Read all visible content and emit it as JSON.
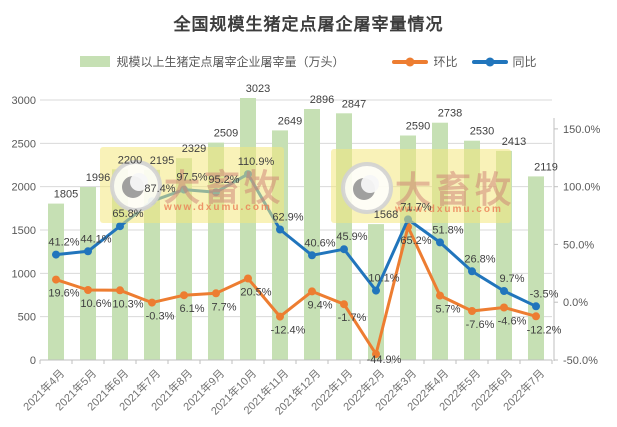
{
  "title": "全国规模生猪定点屠企屠宰量情况",
  "watermark": {
    "brand": "大畜牧",
    "url": "www.dxumu.com"
  },
  "colors": {
    "bar": "#C6E0B4",
    "mom_line": "#ED7D31",
    "yoy_line": "#2175BC",
    "grid": "#D9D9D9",
    "axis_line": "#BFBFBF",
    "data_label": "#404040",
    "tick_label": "#595959",
    "x_label": "#737373",
    "watermark_box": "rgba(244,232,126,0.55)"
  },
  "chart_data": {
    "type": "bar+line combo (bars on left axis, lines on right axis)",
    "title": "全国规模生猪定点屠企屠宰量情况",
    "categories": [
      "2021年4月",
      "2021年5月",
      "2021年6月",
      "2021年7月",
      "2021年8月",
      "2021年9月",
      "2021年10月",
      "2021年11月",
      "2021年12月",
      "2022年1月",
      "2022年2月",
      "2022年3月",
      "2022年4月",
      "2022年5月",
      "2022年6月",
      "2022年7月"
    ],
    "series": [
      {
        "name": "规模以上生猪定点屠宰企业屠宰量（万头）",
        "type": "bar",
        "axis": "left",
        "values": [
          1805,
          1996,
          2200,
          2195,
          2329,
          2509,
          3023,
          2649,
          2896,
          2847,
          1568,
          2590,
          2738,
          2530,
          2413,
          2119
        ]
      },
      {
        "name": "环比",
        "type": "line",
        "axis": "right",
        "label_position": "below",
        "values": [
          19.6,
          10.6,
          10.3,
          -0.3,
          6.1,
          7.7,
          20.5,
          -12.4,
          9.4,
          -1.7,
          -44.9,
          65.2,
          5.7,
          -7.6,
          -4.6,
          -12.2
        ]
      },
      {
        "name": "同比",
        "type": "line",
        "axis": "right",
        "label_position": "above",
        "values": [
          41.2,
          44.1,
          65.8,
          87.4,
          97.5,
          95.2,
          110.9,
          62.9,
          40.6,
          45.9,
          10.1,
          71.7,
          51.8,
          26.8,
          9.7,
          -3.5
        ]
      }
    ],
    "left_axis": {
      "min": 0,
      "max": 3000,
      "tick_values": [
        3000,
        2500,
        2000,
        1500,
        1000,
        500,
        0
      ],
      "tick_labels": [
        "3000",
        "2500",
        "2000",
        "1500",
        "1000",
        "500",
        "0"
      ]
    },
    "right_axis": {
      "min": -50,
      "max": 175,
      "tick_values": [
        150,
        100,
        50,
        0,
        -50
      ],
      "tick_labels": [
        "150.0%",
        "100.0%",
        "50.0%",
        "0.0%",
        "-50.0%"
      ]
    },
    "grid": true,
    "legend_position": "top",
    "data_labels": true
  }
}
